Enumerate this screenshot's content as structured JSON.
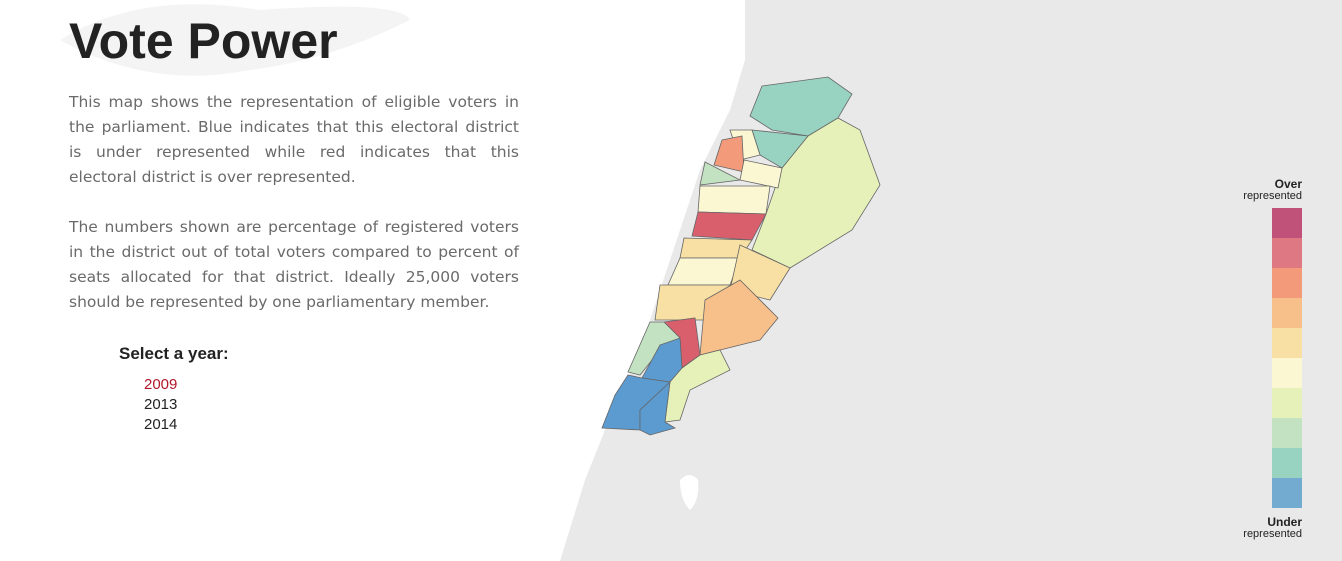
{
  "header": {
    "title": "Vote Power"
  },
  "description": {
    "paragraphs": [
      "This map shows the representation of eligible voters in the parliament. Blue indicates that this electoral district is under represented while red indicates that this electoral district is over represented.",
      "The numbers shown are percentage of registered voters in the district out of total voters compared to percent of seats allocated for that district. Ideally 25,000 voters should be represented by one parliamentary member."
    ]
  },
  "year_selector": {
    "label": "Select a year:",
    "years": [
      "2009",
      "2013",
      "2014"
    ],
    "selected": 0
  },
  "legend": {
    "top": {
      "title": "Over",
      "subtitle": "represented"
    },
    "bottom": {
      "title": "Under",
      "subtitle": "represented"
    },
    "colors": [
      "#c0527a",
      "#de7883",
      "#f39a7b",
      "#f7c08a",
      "#f8e0a4",
      "#fbf7d3",
      "#e6f1b9",
      "#c2e2c2",
      "#98d2c0",
      "#72aad0"
    ]
  }
}
